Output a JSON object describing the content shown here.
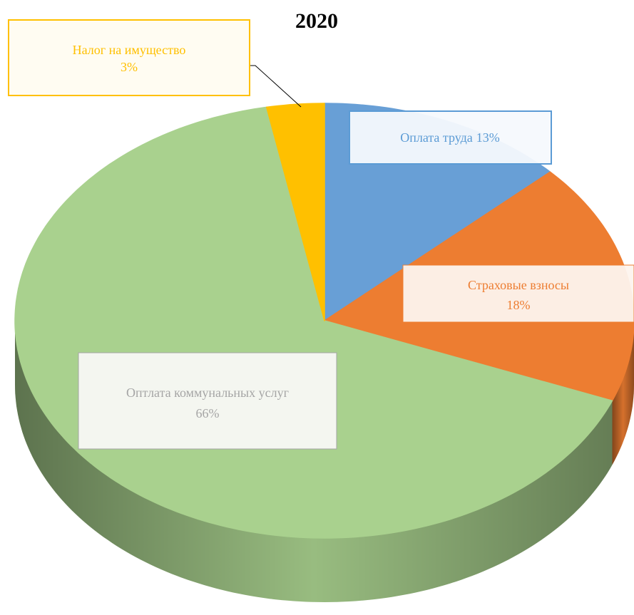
{
  "chart_data": {
    "type": "pie",
    "title": "2020",
    "categories": [
      "Оплата труда",
      "Страховые взносы",
      "Оптлата коммунальных услуг",
      "Налог на имущество"
    ],
    "values": [
      13,
      18,
      66,
      3
    ],
    "value_labels": [
      "13%",
      "18%",
      "66%",
      "3%"
    ],
    "colors": [
      "#689fd6",
      "#ed7d31",
      "#a9d18e",
      "#ffc000"
    ]
  }
}
